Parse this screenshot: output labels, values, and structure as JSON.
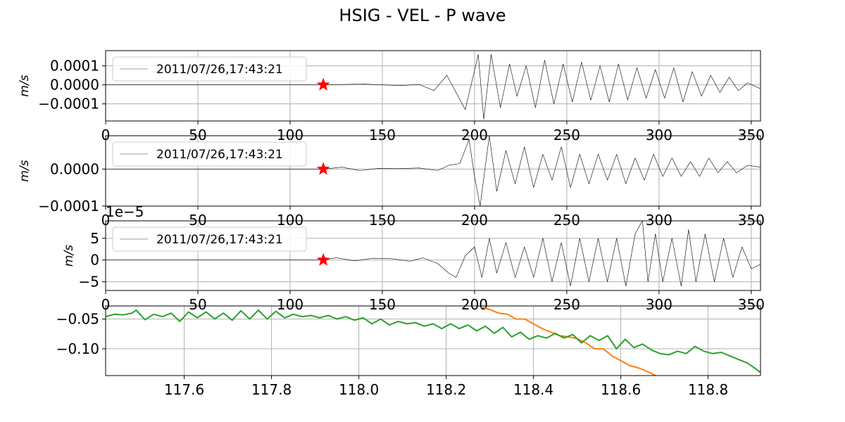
{
  "title": "HSIG - VEL - P wave",
  "colors": {
    "trace": "#000000",
    "grid": "#b0b0b0",
    "star": "#ff0000",
    "orange": "#ff7f0e",
    "green": "#2ca02c",
    "legend_line": "#bfbfbf"
  },
  "chart_data": [
    {
      "type": "line",
      "ylabel": "m/s",
      "xlim": [
        0,
        355
      ],
      "ylim": [
        -0.00019,
        0.00018
      ],
      "x_ticks": [
        0,
        50,
        100,
        150,
        200,
        250,
        300,
        350
      ],
      "x_tick_labels": [
        "0",
        "50",
        "100",
        "150",
        "200",
        "250",
        "300",
        "350"
      ],
      "y_ticks": [
        -0.0001,
        0,
        0.0001
      ],
      "y_tick_labels": [
        "−0.0001",
        "0.0000",
        "0.0001"
      ],
      "legend": "2011/07/26,17:43:21",
      "marker": {
        "symbol": "star",
        "x": 118,
        "y": 0
      },
      "series": [
        {
          "values": [
            [
              0,
              0
            ],
            [
              118,
              0
            ],
            [
              140,
              4e-06
            ],
            [
              160,
              -4e-06
            ],
            [
              170,
              2e-06
            ],
            [
              178,
              -3e-05
            ],
            [
              185,
              5e-05
            ],
            [
              195,
              -0.00013
            ],
            [
              202,
              0.00016
            ],
            [
              205,
              -0.00018
            ],
            [
              209,
              0.00016
            ],
            [
              214,
              -0.00012
            ],
            [
              219,
              0.00011
            ],
            [
              223,
              -6e-05
            ],
            [
              228,
              0.0001
            ],
            [
              233,
              -0.00012
            ],
            [
              238,
              0.00013
            ],
            [
              243,
              -0.0001
            ],
            [
              248,
              0.00011
            ],
            [
              253,
              -9e-05
            ],
            [
              258,
              0.00012
            ],
            [
              263,
              -8e-05
            ],
            [
              268,
              0.0001
            ],
            [
              273,
              -9e-05
            ],
            [
              278,
              0.00011
            ],
            [
              283,
              -8e-05
            ],
            [
              288,
              9e-05
            ],
            [
              293,
              -7e-05
            ],
            [
              298,
              8e-05
            ],
            [
              303,
              -7e-05
            ],
            [
              308,
              9e-05
            ],
            [
              313,
              -9e-05
            ],
            [
              318,
              7e-05
            ],
            [
              323,
              -6e-05
            ],
            [
              328,
              5e-05
            ],
            [
              333,
              -4e-05
            ],
            [
              338,
              4e-05
            ],
            [
              343,
              -3e-05
            ],
            [
              348,
              1e-05
            ],
            [
              355,
              -2e-05
            ]
          ]
        }
      ]
    },
    {
      "type": "line",
      "ylabel": "m/s",
      "xlim": [
        0,
        355
      ],
      "ylim": [
        -0.0001,
        9e-05
      ],
      "x_ticks": [
        0,
        50,
        100,
        150,
        200,
        250,
        300,
        350
      ],
      "x_tick_labels": [
        "0",
        "50",
        "100",
        "150",
        "200",
        "250",
        "300",
        "350"
      ],
      "y_ticks": [
        -0.0001,
        0
      ],
      "y_tick_labels": [
        "−0.0001",
        "0.0000"
      ],
      "legend": "2011/07/26,17:43:21",
      "marker": {
        "symbol": "star",
        "x": 118,
        "y": 0
      },
      "series": [
        {
          "values": [
            [
              0,
              0
            ],
            [
              118,
              0
            ],
            [
              128,
              5e-06
            ],
            [
              138,
              -4e-06
            ],
            [
              148,
              2e-06
            ],
            [
              158,
              1e-06
            ],
            [
              170,
              3e-06
            ],
            [
              180,
              -4e-06
            ],
            [
              186,
              1e-05
            ],
            [
              192,
              1.5e-05
            ],
            [
              197,
              8e-05
            ],
            [
              200,
              -2e-05
            ],
            [
              203,
              -0.0001
            ],
            [
              208,
              9e-05
            ],
            [
              212,
              -6e-05
            ],
            [
              217,
              5e-05
            ],
            [
              222,
              -4e-05
            ],
            [
              227,
              6e-05
            ],
            [
              232,
              -5e-05
            ],
            [
              237,
              4e-05
            ],
            [
              242,
              -3e-05
            ],
            [
              247,
              6e-05
            ],
            [
              252,
              -5e-05
            ],
            [
              257,
              4e-05
            ],
            [
              262,
              -4e-05
            ],
            [
              267,
              4e-05
            ],
            [
              272,
              -3e-05
            ],
            [
              277,
              4e-05
            ],
            [
              282,
              -4e-05
            ],
            [
              287,
              3e-05
            ],
            [
              292,
              -3e-05
            ],
            [
              297,
              4e-05
            ],
            [
              302,
              -2e-05
            ],
            [
              307,
              3e-05
            ],
            [
              312,
              -2e-05
            ],
            [
              317,
              2e-05
            ],
            [
              322,
              -2e-05
            ],
            [
              327,
              3e-05
            ],
            [
              332,
              -1e-05
            ],
            [
              337,
              2e-05
            ],
            [
              342,
              -1e-05
            ],
            [
              348,
              1e-05
            ],
            [
              355,
              5e-06
            ]
          ]
        }
      ]
    },
    {
      "type": "line",
      "ylabel": "m/s",
      "y_offset_label": "1e−5",
      "xlim": [
        0,
        355
      ],
      "ylim": [
        -7,
        9
      ],
      "x_ticks": [
        0,
        50,
        100,
        150,
        200,
        250,
        300,
        350
      ],
      "x_tick_labels": [
        "0",
        "50",
        "100",
        "150",
        "200",
        "250",
        "300",
        "350"
      ],
      "y_ticks": [
        -5,
        0,
        5
      ],
      "y_tick_labels": [
        "−5",
        "0",
        "5"
      ],
      "legend": "2011/07/26,17:43:21",
      "marker": {
        "symbol": "star",
        "x": 118,
        "y": 0
      },
      "series": [
        {
          "values": [
            [
              0,
              0
            ],
            [
              118,
              0
            ],
            [
              125,
              0.5
            ],
            [
              135,
              -0.2
            ],
            [
              145,
              0.4
            ],
            [
              155,
              0.3
            ],
            [
              165,
              -0.3
            ],
            [
              172,
              0.5
            ],
            [
              180,
              -0.8
            ],
            [
              186,
              -3
            ],
            [
              190,
              -4
            ],
            [
              195,
              1
            ],
            [
              200,
              3
            ],
            [
              204,
              -4
            ],
            [
              208,
              5
            ],
            [
              212,
              -3
            ],
            [
              217,
              4
            ],
            [
              222,
              -4
            ],
            [
              227,
              3
            ],
            [
              232,
              -4
            ],
            [
              237,
              5
            ],
            [
              242,
              -5
            ],
            [
              247,
              4
            ],
            [
              252,
              -6
            ],
            [
              257,
              5
            ],
            [
              262,
              -5
            ],
            [
              267,
              5
            ],
            [
              272,
              -5
            ],
            [
              277,
              5
            ],
            [
              282,
              -6
            ],
            [
              287,
              6
            ],
            [
              291,
              9
            ],
            [
              294,
              -5
            ],
            [
              298,
              6
            ],
            [
              302,
              -5
            ],
            [
              307,
              5
            ],
            [
              312,
              -6
            ],
            [
              316,
              7
            ],
            [
              320,
              -5
            ],
            [
              325,
              6
            ],
            [
              330,
              -5
            ],
            [
              335,
              5
            ],
            [
              340,
              -4
            ],
            [
              345,
              3
            ],
            [
              350,
              -2
            ],
            [
              355,
              -1
            ]
          ]
        }
      ]
    },
    {
      "type": "line",
      "xlim": [
        117.42,
        118.92
      ],
      "ylim": [
        -0.145,
        -0.028
      ],
      "x_ticks": [
        117.6,
        117.8,
        118.0,
        118.2,
        118.4,
        118.6,
        118.8
      ],
      "x_tick_labels": [
        "117.6",
        "117.8",
        "118.0",
        "118.2",
        "118.4",
        "118.6",
        "118.8"
      ],
      "y_ticks": [
        -0.05,
        -0.1
      ],
      "y_tick_labels": [
        "−0.05",
        "−0.10"
      ],
      "series": [
        {
          "color": "orange",
          "values": [
            [
              118.28,
              -0.03
            ],
            [
              118.3,
              -0.034
            ],
            [
              118.32,
              -0.04
            ],
            [
              118.34,
              -0.042
            ],
            [
              118.36,
              -0.05
            ],
            [
              118.38,
              -0.05
            ],
            [
              118.4,
              -0.058
            ],
            [
              118.42,
              -0.066
            ],
            [
              118.44,
              -0.072
            ],
            [
              118.46,
              -0.078
            ],
            [
              118.48,
              -0.08
            ],
            [
              118.5,
              -0.083
            ],
            [
              118.52,
              -0.09
            ],
            [
              118.54,
              -0.1
            ],
            [
              118.56,
              -0.1
            ],
            [
              118.58,
              -0.112
            ],
            [
              118.6,
              -0.12
            ],
            [
              118.62,
              -0.128
            ],
            [
              118.64,
              -0.132
            ],
            [
              118.66,
              -0.138
            ],
            [
              118.68,
              -0.145
            ]
          ]
        },
        {
          "color": "green",
          "values": [
            [
              117.42,
              -0.046
            ],
            [
              117.44,
              -0.042
            ],
            [
              117.46,
              -0.043
            ],
            [
              117.48,
              -0.04
            ],
            [
              117.49,
              -0.035
            ],
            [
              117.51,
              -0.051
            ],
            [
              117.53,
              -0.042
            ],
            [
              117.55,
              -0.046
            ],
            [
              117.57,
              -0.04
            ],
            [
              117.59,
              -0.054
            ],
            [
              117.61,
              -0.038
            ],
            [
              117.63,
              -0.048
            ],
            [
              117.65,
              -0.038
            ],
            [
              117.67,
              -0.05
            ],
            [
              117.69,
              -0.04
            ],
            [
              117.71,
              -0.052
            ],
            [
              117.73,
              -0.036
            ],
            [
              117.75,
              -0.05
            ],
            [
              117.77,
              -0.035
            ],
            [
              117.79,
              -0.05
            ],
            [
              117.81,
              -0.037
            ],
            [
              117.83,
              -0.048
            ],
            [
              117.85,
              -0.042
            ],
            [
              117.87,
              -0.046
            ],
            [
              117.89,
              -0.044
            ],
            [
              117.91,
              -0.048
            ],
            [
              117.93,
              -0.044
            ],
            [
              117.95,
              -0.05
            ],
            [
              117.97,
              -0.046
            ],
            [
              117.99,
              -0.052
            ],
            [
              118.01,
              -0.048
            ],
            [
              118.03,
              -0.058
            ],
            [
              118.05,
              -0.05
            ],
            [
              118.07,
              -0.06
            ],
            [
              118.09,
              -0.054
            ],
            [
              118.11,
              -0.058
            ],
            [
              118.13,
              -0.056
            ],
            [
              118.15,
              -0.062
            ],
            [
              118.17,
              -0.058
            ],
            [
              118.19,
              -0.066
            ],
            [
              118.21,
              -0.058
            ],
            [
              118.23,
              -0.066
            ],
            [
              118.25,
              -0.06
            ],
            [
              118.27,
              -0.07
            ],
            [
              118.29,
              -0.062
            ],
            [
              118.31,
              -0.074
            ],
            [
              118.33,
              -0.064
            ],
            [
              118.35,
              -0.08
            ],
            [
              118.37,
              -0.072
            ],
            [
              118.39,
              -0.084
            ],
            [
              118.41,
              -0.078
            ],
            [
              118.43,
              -0.082
            ],
            [
              118.45,
              -0.074
            ],
            [
              118.47,
              -0.082
            ],
            [
              118.49,
              -0.076
            ],
            [
              118.51,
              -0.09
            ],
            [
              118.53,
              -0.078
            ],
            [
              118.55,
              -0.086
            ],
            [
              118.57,
              -0.078
            ],
            [
              118.59,
              -0.1
            ],
            [
              118.61,
              -0.084
            ],
            [
              118.63,
              -0.098
            ],
            [
              118.65,
              -0.092
            ],
            [
              118.67,
              -0.102
            ],
            [
              118.69,
              -0.108
            ],
            [
              118.71,
              -0.11
            ],
            [
              118.73,
              -0.104
            ],
            [
              118.75,
              -0.108
            ],
            [
              118.77,
              -0.096
            ],
            [
              118.79,
              -0.104
            ],
            [
              118.81,
              -0.108
            ],
            [
              118.83,
              -0.106
            ],
            [
              118.85,
              -0.112
            ],
            [
              118.87,
              -0.118
            ],
            [
              118.89,
              -0.124
            ],
            [
              118.91,
              -0.134
            ],
            [
              118.92,
              -0.14
            ]
          ]
        }
      ]
    }
  ]
}
